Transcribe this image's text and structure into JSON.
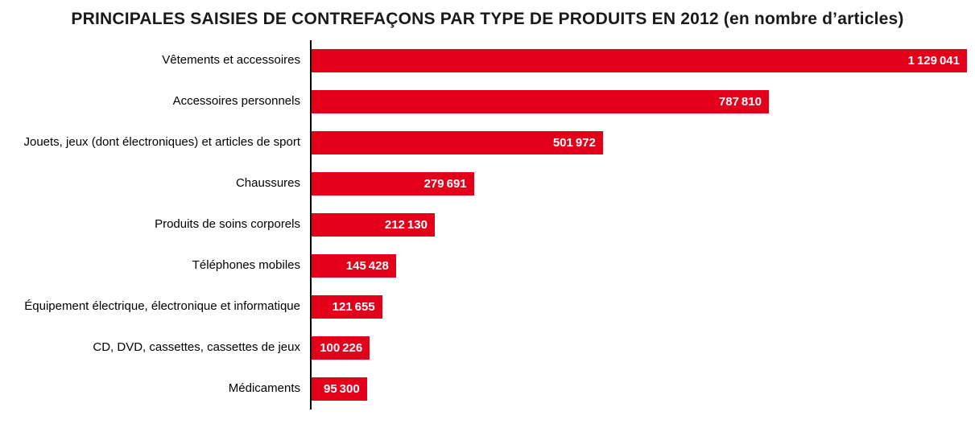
{
  "title": "PRINCIPALES SAISIES DE CONTREFAÇONS PAR TYPE DE PRODUITS EN 2012 (en nombre d’articles)",
  "chart_data": {
    "type": "bar",
    "orientation": "horizontal",
    "title": "PRINCIPALES SAISIES DE CONTREFAÇONS PAR TYPE DE PRODUITS EN 2012 (en nombre d’articles)",
    "xlabel": "",
    "ylabel": "",
    "xlim": [
      0,
      1129041
    ],
    "grid": false,
    "legend": false,
    "bar_color": "#e2001a",
    "value_label_color": "#ffffff",
    "axis_line_color": "#000000",
    "categories": [
      "Vêtements et accessoires",
      "Accessoires personnels",
      "Jouets, jeux (dont électroniques) et articles de sport",
      "Chaussures",
      "Produits de soins corporels",
      "Téléphones mobiles",
      "Équipement électrique, électronique et informatique",
      "CD, DVD, cassettes, cassettes de jeux",
      "Médicaments"
    ],
    "values": [
      1129041,
      787810,
      501972,
      279691,
      212130,
      145428,
      121655,
      100226,
      95300
    ],
    "value_labels": [
      "1 129 041",
      "787 810",
      "501 972",
      "279 691",
      "212 130",
      "145 428",
      "121 655",
      "100 226",
      "95 300"
    ]
  }
}
